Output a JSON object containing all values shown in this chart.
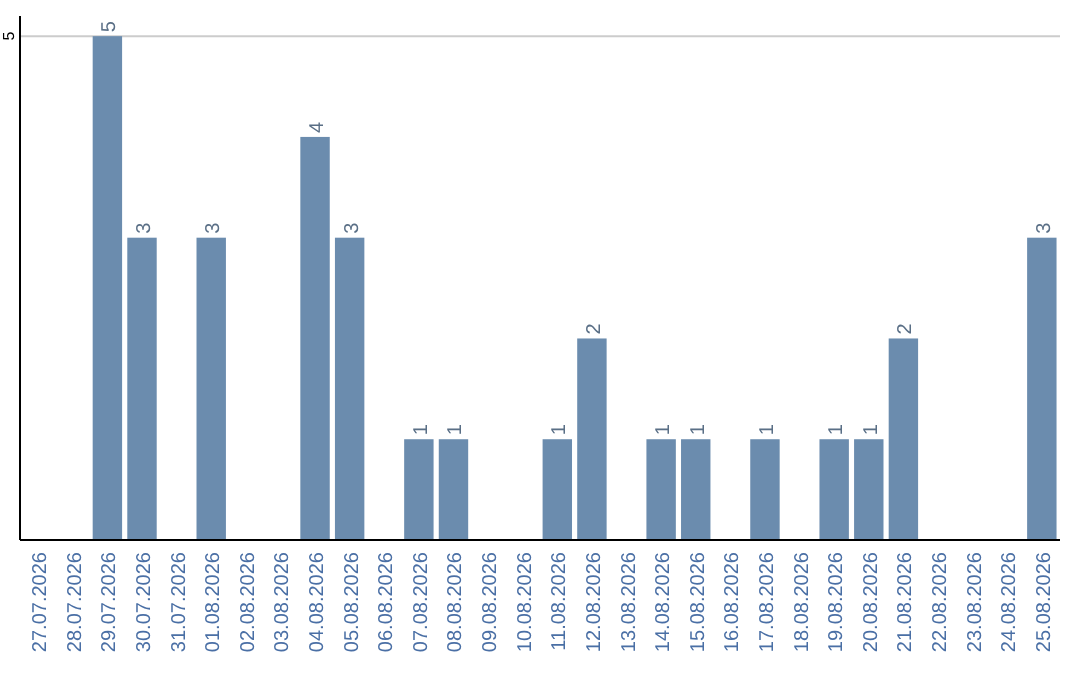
{
  "chart_data": {
    "type": "bar",
    "categories": [
      "27.07.2026",
      "28.07.2026",
      "29.07.2026",
      "30.07.2026",
      "31.07.2026",
      "01.08.2026",
      "02.08.2026",
      "03.08.2026",
      "04.08.2026",
      "05.08.2026",
      "06.08.2026",
      "07.08.2026",
      "08.08.2026",
      "09.08.2026",
      "10.08.2026",
      "11.08.2026",
      "12.08.2026",
      "13.08.2026",
      "14.08.2026",
      "15.08.2026",
      "16.08.2026",
      "17.08.2026",
      "18.08.2026",
      "19.08.2026",
      "20.08.2026",
      "21.08.2026",
      "22.08.2026",
      "23.08.2026",
      "24.08.2026",
      "25.08.2026"
    ],
    "values": [
      0,
      0,
      5,
      3,
      0,
      3,
      0,
      0,
      4,
      3,
      0,
      1,
      1,
      0,
      0,
      1,
      2,
      0,
      1,
      1,
      0,
      1,
      0,
      1,
      1,
      2,
      0,
      0,
      0,
      3
    ],
    "value_labels": [
      null,
      null,
      "5",
      "3",
      null,
      "3",
      null,
      null,
      "4",
      "3",
      null,
      "1",
      "1",
      null,
      null,
      "1",
      "2",
      null,
      "1",
      "1",
      null,
      "1",
      null,
      "1",
      "1",
      "2",
      null,
      null,
      null,
      "3"
    ],
    "color": "#6b8cae",
    "ylim": [
      0,
      5.2
    ],
    "yticks": [
      5
    ],
    "grid": "y"
  }
}
